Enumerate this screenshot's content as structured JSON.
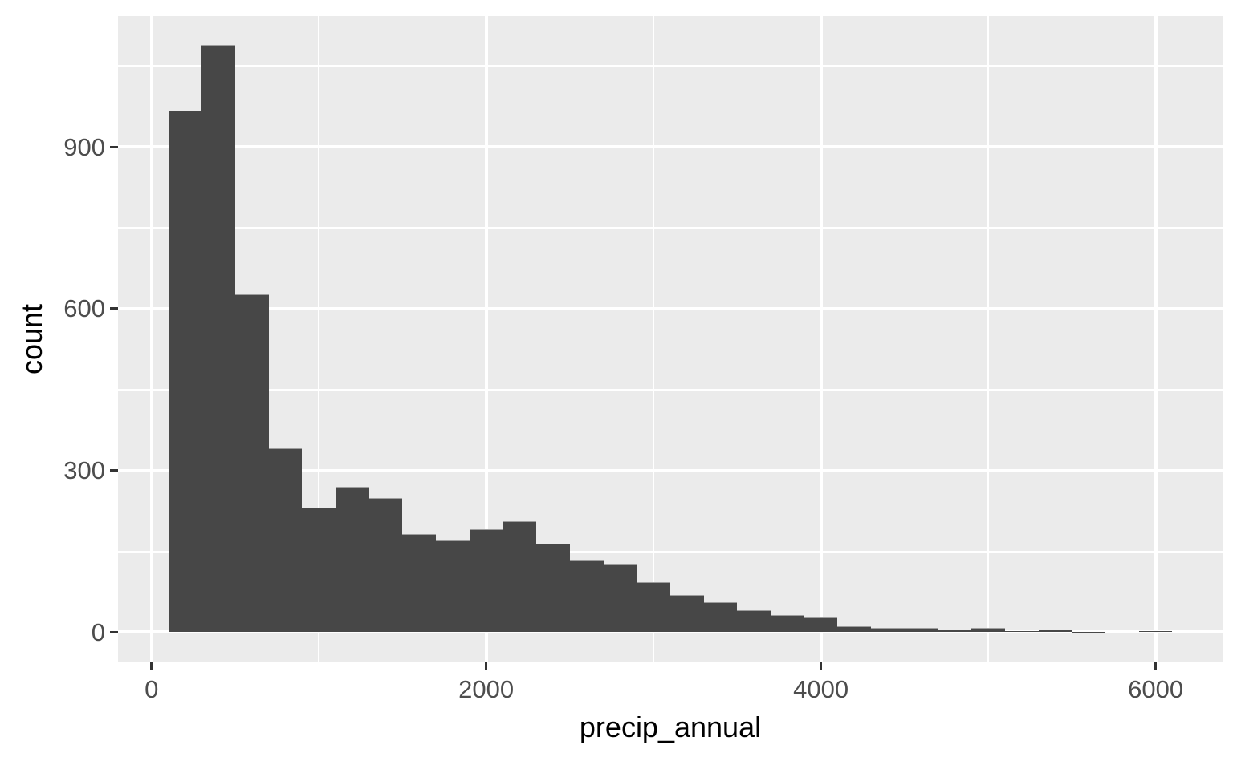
{
  "chart_data": {
    "type": "bar",
    "subtype": "histogram",
    "title": "",
    "xlabel": "precip_annual",
    "ylabel": "count",
    "bin_start": 100,
    "bin_width": 200,
    "counts": [
      966,
      1088,
      625,
      339,
      230,
      268,
      248,
      180,
      168,
      190,
      205,
      163,
      133,
      125,
      92,
      68,
      54,
      39,
      31,
      26,
      10,
      7,
      7,
      4,
      7,
      2,
      3,
      1,
      0,
      2
    ],
    "x_ticks": [
      0,
      2000,
      4000,
      6000
    ],
    "y_ticks": [
      0,
      300,
      600,
      900
    ],
    "x_minor_gridlines": [
      1000,
      3000,
      5000
    ],
    "y_minor_gridlines": [
      150,
      450,
      750,
      1050
    ],
    "xlim": [
      -200,
      6400
    ],
    "ylim": [
      -54.4,
      1142.4
    ],
    "grid": true,
    "legend_position": "none",
    "colors": {
      "bar": "#474747",
      "panel_background": "#EBEBEB",
      "gridline": "#FFFFFF",
      "tick_mark": "#333333",
      "tick_label": "#4D4D4D",
      "axis_title": "#000000",
      "figure_background": "#FFFFFF"
    }
  }
}
